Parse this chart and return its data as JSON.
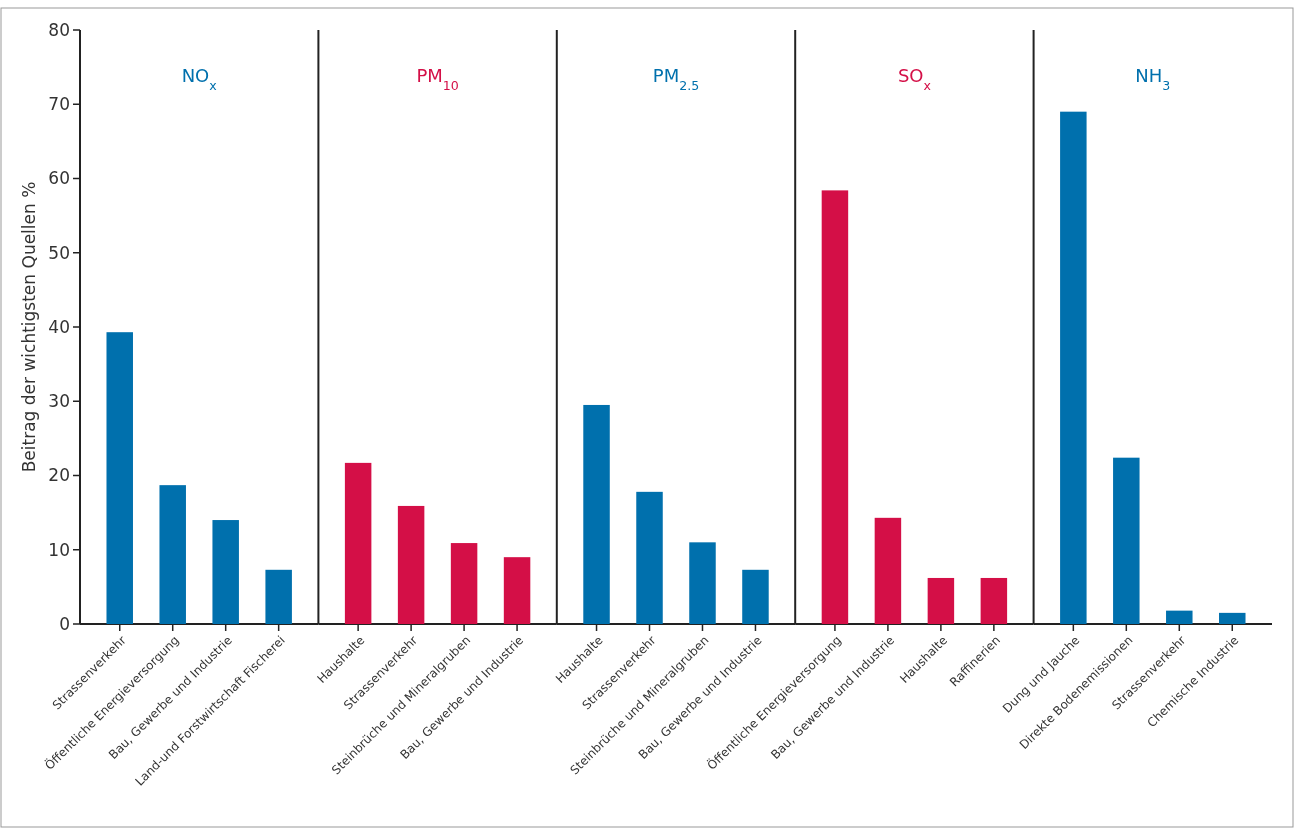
{
  "chart_data": [
    {
      "type": "bar",
      "title": "NO$_{x}$",
      "ylabel": "Beitrag der wichtigsten Quellen %",
      "categories": [
        "Strassenverkehr",
        "Öffentliche Energieversorgung",
        "Bau, Gewerbe und Industrie",
        "Land-und Forstwirtschaft Fischerei"
      ],
      "values": [
        39.3,
        18.7,
        14.0,
        7.3
      ],
      "color": "#0070ad",
      "ylim": [
        0,
        80
      ],
      "yticks": [
        0,
        10,
        20,
        30,
        40,
        50,
        60,
        70,
        80
      ]
    },
    {
      "type": "bar",
      "title": "PM$_{10}$",
      "categories": [
        "Haushalte",
        "Strassenverkehr",
        "Steinbrüche und Mineralgruben",
        "Bau, Gewerbe und Industrie"
      ],
      "values": [
        21.7,
        15.9,
        10.9,
        9.0
      ],
      "color": "#d40f47",
      "ylim": [
        0,
        80
      ],
      "tick_labels": "x"
    },
    {
      "type": "bar",
      "title": "PM$_{2.5}$",
      "categories": [
        "Haushalte",
        "Strassenverkehr",
        "Steinbrüche und Mineralgruben",
        "Bau, Gewerbe und Industrie"
      ],
      "values": [
        29.5,
        17.8,
        11.0,
        7.3
      ],
      "color": "#0070ad",
      "ylim": [
        0,
        80
      ],
      "tick_labels": "x"
    },
    {
      "type": "bar",
      "title": "SO$_{x}$",
      "categories": [
        "Öffentliche Energieversorgung",
        "Bau, Gewerbe und Industrie",
        "Haushalte",
        "Raffinerien"
      ],
      "values": [
        58.4,
        14.3,
        6.2,
        6.2
      ],
      "color": "#d40f47",
      "ylim": [
        0,
        80
      ],
      "tick_labels": "x"
    },
    {
      "type": "bar",
      "title": "NH$_{3}$",
      "categories": [
        "Dung und Jauche",
        "Direkte Bodenemissionen",
        "Strassenverkehr",
        "Chemische Industrie"
      ],
      "values": [
        69.0,
        22.4,
        1.8,
        1.5
      ],
      "color": "#0070ad",
      "ylim": [
        0,
        80
      ],
      "tick_labels": "x"
    }
  ]
}
